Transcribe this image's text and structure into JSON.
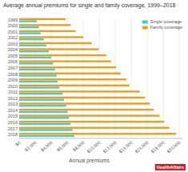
{
  "chart_data": {
    "type": "bar",
    "orientation": "horizontal",
    "title": "Average annual premiums for single and family coverage, 1999–2018",
    "xlabel": "Annual premiums",
    "categories": [
      "1999",
      "2000",
      "2001",
      "2002",
      "2003",
      "2004",
      "2005",
      "2006",
      "2007",
      "2008",
      "2009",
      "2010",
      "2011",
      "2012",
      "2013",
      "2014",
      "2015",
      "2016",
      "2017",
      "2018"
    ],
    "series": [
      {
        "name": "Single coverage",
        "color": "#4dc8c8",
        "values": [
          2196,
          2471,
          2689,
          3083,
          3383,
          3695,
          4024,
          4242,
          4479,
          4704,
          4824,
          5049,
          5429,
          5615,
          5884,
          6025,
          6251,
          6435,
          6690,
          6896
        ]
      },
      {
        "name": "Family coverage",
        "color": "#e8a020",
        "values": [
          5791,
          6438,
          7053,
          8003,
          9068,
          9950,
          10880,
          11480,
          12106,
          12680,
          13375,
          13770,
          15073,
          15745,
          16351,
          16834,
          17545,
          18142,
          18764,
          19616
        ]
      }
    ],
    "xlim": [
      0,
      20500
    ],
    "xticks": [
      {
        "value": 0,
        "label": "$0"
      },
      {
        "value": 2000,
        "label": "$2,000"
      },
      {
        "value": 4000,
        "label": "$4,000"
      },
      {
        "value": 6000,
        "label": "$6,000"
      },
      {
        "value": 8000,
        "label": "$8,000"
      },
      {
        "value": 10000,
        "label": "$10,000"
      },
      {
        "value": 12000,
        "label": "$12,000"
      },
      {
        "value": 14000,
        "label": "$14,000"
      },
      {
        "value": 16000,
        "label": "$16,000"
      },
      {
        "value": 18000,
        "label": "$18,000"
      },
      {
        "value": 20000,
        "label": "$20,000"
      }
    ],
    "grid": true,
    "legend": "upper right",
    "annotations": [
      "HealthAffairs"
    ]
  }
}
